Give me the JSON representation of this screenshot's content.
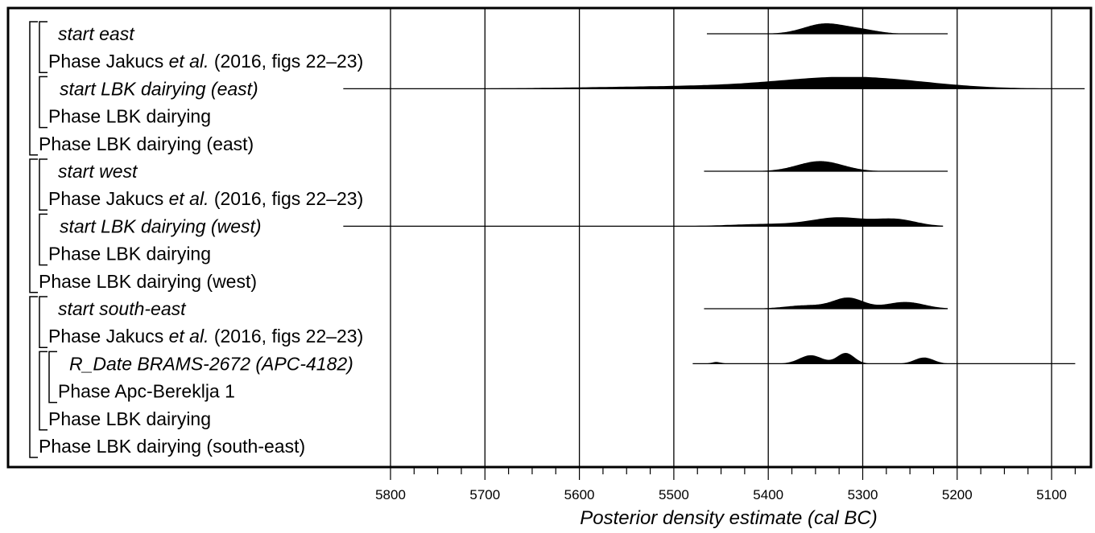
{
  "chart_data": {
    "type": "area",
    "title": "",
    "xlabel": "Posterior density estimate (cal BC)",
    "ylabel": "",
    "x_reversed": true,
    "xlim": [
      5850,
      5070
    ],
    "xticks": [
      5800,
      5700,
      5600,
      5500,
      5400,
      5300,
      5200,
      5100
    ],
    "grid": true,
    "rows": [
      {
        "label": "start east",
        "italic": true,
        "indent": 1,
        "dist": {
          "range": [
            5465,
            5210
          ],
          "peaks": [
            {
              "center": 5340,
              "width": 22,
              "height": 0.9
            },
            {
              "center": 5300,
              "width": 18,
              "height": 0.3
            }
          ]
        }
      },
      {
        "label_parts": [
          {
            "t": "Phase Jakucs ",
            "i": false
          },
          {
            "t": "et al.",
            "i": true
          },
          {
            "t": " (2016, figs 22–23)",
            "i": false
          }
        ],
        "indent": 1
      },
      {
        "label": "start LBK dairying (east)",
        "italic": true,
        "indent": 2,
        "dist": {
          "range": [
            5850,
            5065
          ],
          "peaks": [
            {
              "center": 5310,
              "width": 75,
              "height": 1.0
            },
            {
              "center": 5480,
              "width": 110,
              "height": 0.22
            }
          ]
        }
      },
      {
        "label": "Phase LBK dairying",
        "italic": false,
        "indent": 1
      },
      {
        "label": "Phase LBK dairying (east)",
        "italic": false,
        "indent": 0
      },
      {
        "label": "start west",
        "italic": true,
        "indent": 1,
        "dist": {
          "range": [
            5468,
            5210
          ],
          "peaks": [
            {
              "center": 5345,
              "width": 24,
              "height": 0.9
            }
          ]
        }
      },
      {
        "label_parts": [
          {
            "t": "Phase Jakucs ",
            "i": false
          },
          {
            "t": "et al.",
            "i": true
          },
          {
            "t": " (2016, figs 22–23)",
            "i": false
          }
        ],
        "indent": 1
      },
      {
        "label": "start LBK dairying (west)",
        "italic": true,
        "indent": 2,
        "dist": {
          "range": [
            5850,
            5215
          ],
          "peaks": [
            {
              "center": 5325,
              "width": 28,
              "height": 0.75
            },
            {
              "center": 5265,
              "width": 22,
              "height": 0.6
            },
            {
              "center": 5400,
              "width": 40,
              "height": 0.2
            }
          ]
        }
      },
      {
        "label": "Phase LBK dairying",
        "italic": false,
        "indent": 1
      },
      {
        "label": "Phase LBK dairying (west)",
        "italic": false,
        "indent": 0
      },
      {
        "label": "start south-east",
        "italic": true,
        "indent": 1,
        "dist": {
          "range": [
            5468,
            5210
          ],
          "peaks": [
            {
              "center": 5315,
              "width": 16,
              "height": 0.95
            },
            {
              "center": 5255,
              "width": 20,
              "height": 0.6
            },
            {
              "center": 5360,
              "width": 22,
              "height": 0.3
            }
          ]
        }
      },
      {
        "label_parts": [
          {
            "t": "Phase Jakucs ",
            "i": false
          },
          {
            "t": "et al.",
            "i": true
          },
          {
            "t": " (2016, figs 22–23)",
            "i": false
          }
        ],
        "indent": 1
      },
      {
        "label": "R_Date BRAMS-2672 (APC-4182)",
        "italic": true,
        "indent": 3,
        "dist": {
          "range": [
            5480,
            5075
          ],
          "peaks": [
            {
              "center": 5355,
              "width": 12,
              "height": 0.75
            },
            {
              "center": 5318,
              "width": 9,
              "height": 0.95
            },
            {
              "center": 5235,
              "width": 10,
              "height": 0.55
            },
            {
              "center": 5455,
              "width": 5,
              "height": 0.15
            }
          ]
        }
      },
      {
        "label": "Phase Apc-Bereklja 1",
        "italic": false,
        "indent": 2
      },
      {
        "label": "Phase LBK dairying",
        "italic": false,
        "indent": 1
      },
      {
        "label": "Phase LBK dairying (south-east)",
        "italic": false,
        "indent": 0
      }
    ],
    "brackets": [
      {
        "from": 0,
        "to": 4,
        "indent": 0
      },
      {
        "from": 0,
        "to": 1,
        "indent": 1
      },
      {
        "from": 2,
        "to": 3,
        "indent": 1
      },
      {
        "from": 5,
        "to": 9,
        "indent": 0
      },
      {
        "from": 5,
        "to": 6,
        "indent": 1
      },
      {
        "from": 7,
        "to": 8,
        "indent": 1
      },
      {
        "from": 10,
        "to": 15,
        "indent": 0
      },
      {
        "from": 10,
        "to": 11,
        "indent": 1
      },
      {
        "from": 12,
        "to": 14,
        "indent": 1
      },
      {
        "from": 12,
        "to": 13,
        "indent": 2
      }
    ]
  }
}
